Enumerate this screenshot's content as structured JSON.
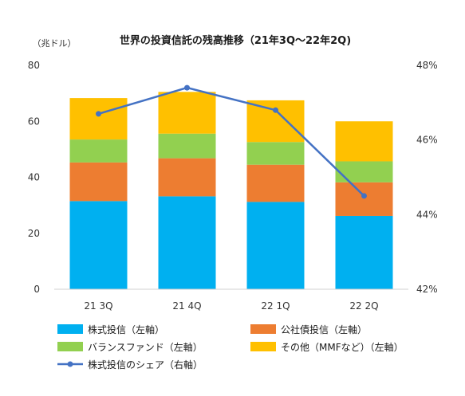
{
  "chart_data": {
    "type": "bar",
    "stacked": true,
    "title": "世界の投資信託の残高推移（21年3Q～22年2Q)",
    "y_unit_label": "（兆ドル）",
    "categories": [
      "21 3Q",
      "21 4Q",
      "22 1Q",
      "22 2Q"
    ],
    "ylim": [
      0,
      80
    ],
    "yticks": [
      0,
      20,
      40,
      60,
      80
    ],
    "y2lim": [
      42,
      48
    ],
    "y2ticks": [
      "42%",
      "44%",
      "46%",
      "48%"
    ],
    "y2tick_values": [
      42,
      44,
      46,
      48
    ],
    "grid": false,
    "legend_position": "bottom",
    "series": [
      {
        "name": "株式投信（左軸）",
        "color": "#00B0F0",
        "values": [
          31.5,
          33.2,
          31.2,
          26.2
        ]
      },
      {
        "name": "公社債投信（左軸）",
        "color": "#ED7D31",
        "values": [
          13.8,
          13.6,
          13.3,
          12.0
        ]
      },
      {
        "name": "バランスファンド（左軸）",
        "color": "#92D050",
        "values": [
          8.2,
          8.8,
          8.1,
          7.5
        ]
      },
      {
        "name": "その他（MMFなど）（左軸）",
        "color": "#FFC000",
        "values": [
          14.8,
          14.9,
          14.9,
          14.3
        ]
      }
    ],
    "line_series": {
      "name": "株式投信のシェア（右軸）",
      "color": "#4472C4",
      "axis": "right",
      "values": [
        46.7,
        47.4,
        46.8,
        44.5
      ]
    }
  }
}
